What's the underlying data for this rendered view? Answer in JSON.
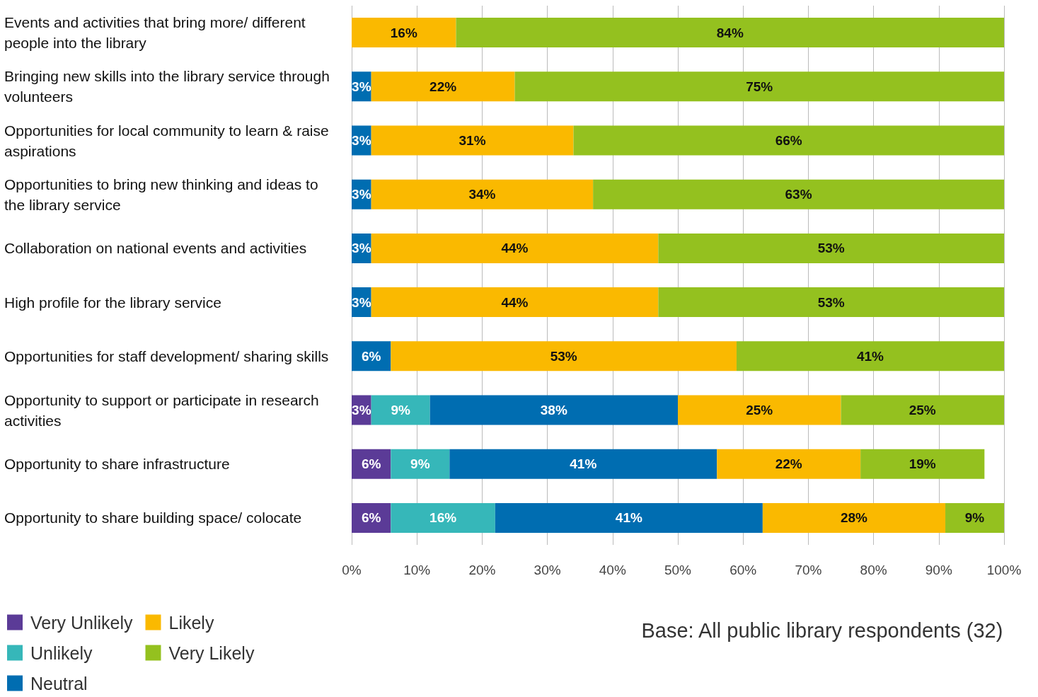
{
  "chart_data": {
    "type": "bar",
    "orientation": "horizontal",
    "stacked": true,
    "categories": [
      "Events and activities that bring more/ different people into the library",
      "Bringing new skills into the library service through volunteers",
      "Opportunities for local community to learn & raise aspirations",
      "Opportunities to bring new thinking and ideas to the library service",
      "Collaboration on national events and activities",
      "High profile for the library service",
      "Opportunities for staff development/ sharing skills",
      "Opportunity to support or participate in research activities",
      "Opportunity to share infrastructure",
      "Opportunity to share building space/ colocate"
    ],
    "series": [
      {
        "name": "Very Unlikely",
        "color": "#5b3b97",
        "values": [
          null,
          null,
          null,
          null,
          null,
          null,
          null,
          3,
          6,
          6
        ],
        "value_labels": [
          null,
          null,
          null,
          null,
          null,
          null,
          null,
          "3%",
          "6%",
          "6%"
        ]
      },
      {
        "name": "Unlikely",
        "color": "#36b7b9",
        "values": [
          null,
          null,
          null,
          null,
          null,
          null,
          null,
          9,
          9,
          16
        ],
        "value_labels": [
          null,
          null,
          null,
          null,
          null,
          null,
          null,
          "9%",
          "9%",
          "16%"
        ]
      },
      {
        "name": "Neutral",
        "color": "#006db1",
        "values": [
          null,
          3,
          3,
          3,
          3,
          3,
          6,
          38,
          41,
          41
        ],
        "value_labels": [
          null,
          "3%",
          "3%",
          "3%",
          "3%",
          "3%",
          "6%",
          "38%",
          "41%",
          "41%"
        ]
      },
      {
        "name": "Likely",
        "color": "#fab900",
        "values": [
          16,
          22,
          31,
          34,
          44,
          44,
          53,
          25,
          22,
          28
        ],
        "value_labels": [
          "16%",
          "22%",
          "31%",
          "34%",
          "44%",
          "44%",
          "53%",
          "25%",
          "22%",
          "28%"
        ]
      },
      {
        "name": "Very Likely",
        "color": "#94c11f",
        "values": [
          84,
          75,
          66,
          63,
          53,
          53,
          41,
          25,
          19,
          9
        ],
        "value_labels": [
          "84%",
          "75%",
          "66%",
          "63%",
          "53%",
          "53%",
          "41%",
          "25%",
          "19%",
          "9%"
        ]
      }
    ],
    "xlim": [
      0,
      100
    ],
    "xticks": [
      {
        "value": 0,
        "label": "0%"
      },
      {
        "value": 10,
        "label": "10%"
      },
      {
        "value": 20,
        "label": "20%"
      },
      {
        "value": 30,
        "label": "30%"
      },
      {
        "value": 40,
        "label": "40%"
      },
      {
        "value": 50,
        "label": "50%"
      },
      {
        "value": 60,
        "label": "60%"
      },
      {
        "value": 70,
        "label": "70%"
      },
      {
        "value": 80,
        "label": "80%"
      },
      {
        "value": 90,
        "label": "90%"
      },
      {
        "value": 100,
        "label": "100%"
      }
    ],
    "grid": "x",
    "legend": "bottom left",
    "annotations": [
      "Base: All public library respondents (32)"
    ]
  }
}
